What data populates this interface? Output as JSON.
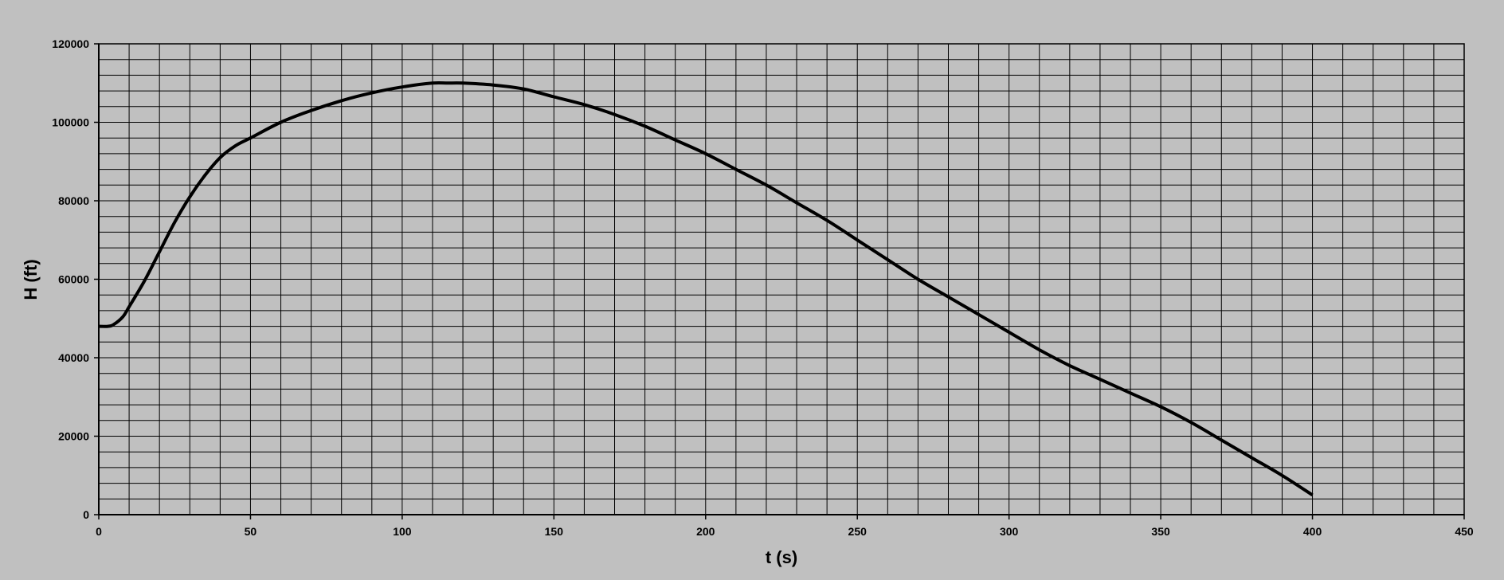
{
  "chart_data": {
    "type": "line",
    "title": "",
    "xlabel": "t (s)",
    "ylabel": "H (ft)",
    "xlim": [
      0,
      450
    ],
    "ylim": [
      0,
      120000
    ],
    "x_major_ticks": [
      0,
      50,
      100,
      150,
      200,
      250,
      300,
      350,
      400,
      450
    ],
    "x_tick_labels": [
      "0",
      "50",
      "100",
      "150",
      "200",
      "250",
      "300",
      "350",
      "400",
      "450"
    ],
    "y_major_ticks": [
      0,
      20000,
      40000,
      60000,
      80000,
      100000,
      120000
    ],
    "y_tick_labels": [
      "0",
      "20000",
      "40000",
      "60000",
      "80000",
      "100000",
      "120000"
    ],
    "x_minor_step": 10,
    "y_minor_step": 4000,
    "grid": true,
    "legend": "none",
    "colors": {
      "background": "#c0c0c0",
      "plot_area": "#c0c0c0",
      "grid": "#000000",
      "line": "#000000"
    },
    "series": [
      {
        "x": [
          0,
          3,
          5,
          8,
          10,
          15,
          20,
          25,
          30,
          35,
          40,
          45,
          50,
          60,
          70,
          80,
          90,
          100,
          110,
          115,
          120,
          130,
          140,
          150,
          160,
          170,
          180,
          190,
          200,
          210,
          220,
          230,
          240,
          250,
          260,
          270,
          280,
          290,
          300,
          310,
          320,
          330,
          340,
          350,
          360,
          370,
          380,
          390,
          400
        ],
        "y": [
          48000,
          48000,
          48500,
          50500,
          53000,
          59500,
          67000,
          74500,
          81000,
          86500,
          91000,
          94000,
          96000,
          100000,
          103000,
          105500,
          107500,
          109000,
          110000,
          110000,
          110000,
          109500,
          108500,
          106500,
          104500,
          102000,
          99000,
          95500,
          92000,
          88000,
          84000,
          79500,
          75000,
          70000,
          65000,
          60000,
          55500,
          51000,
          46500,
          42000,
          38000,
          34500,
          31000,
          27500,
          23500,
          19000,
          14500,
          10000,
          5000
        ]
      }
    ]
  }
}
